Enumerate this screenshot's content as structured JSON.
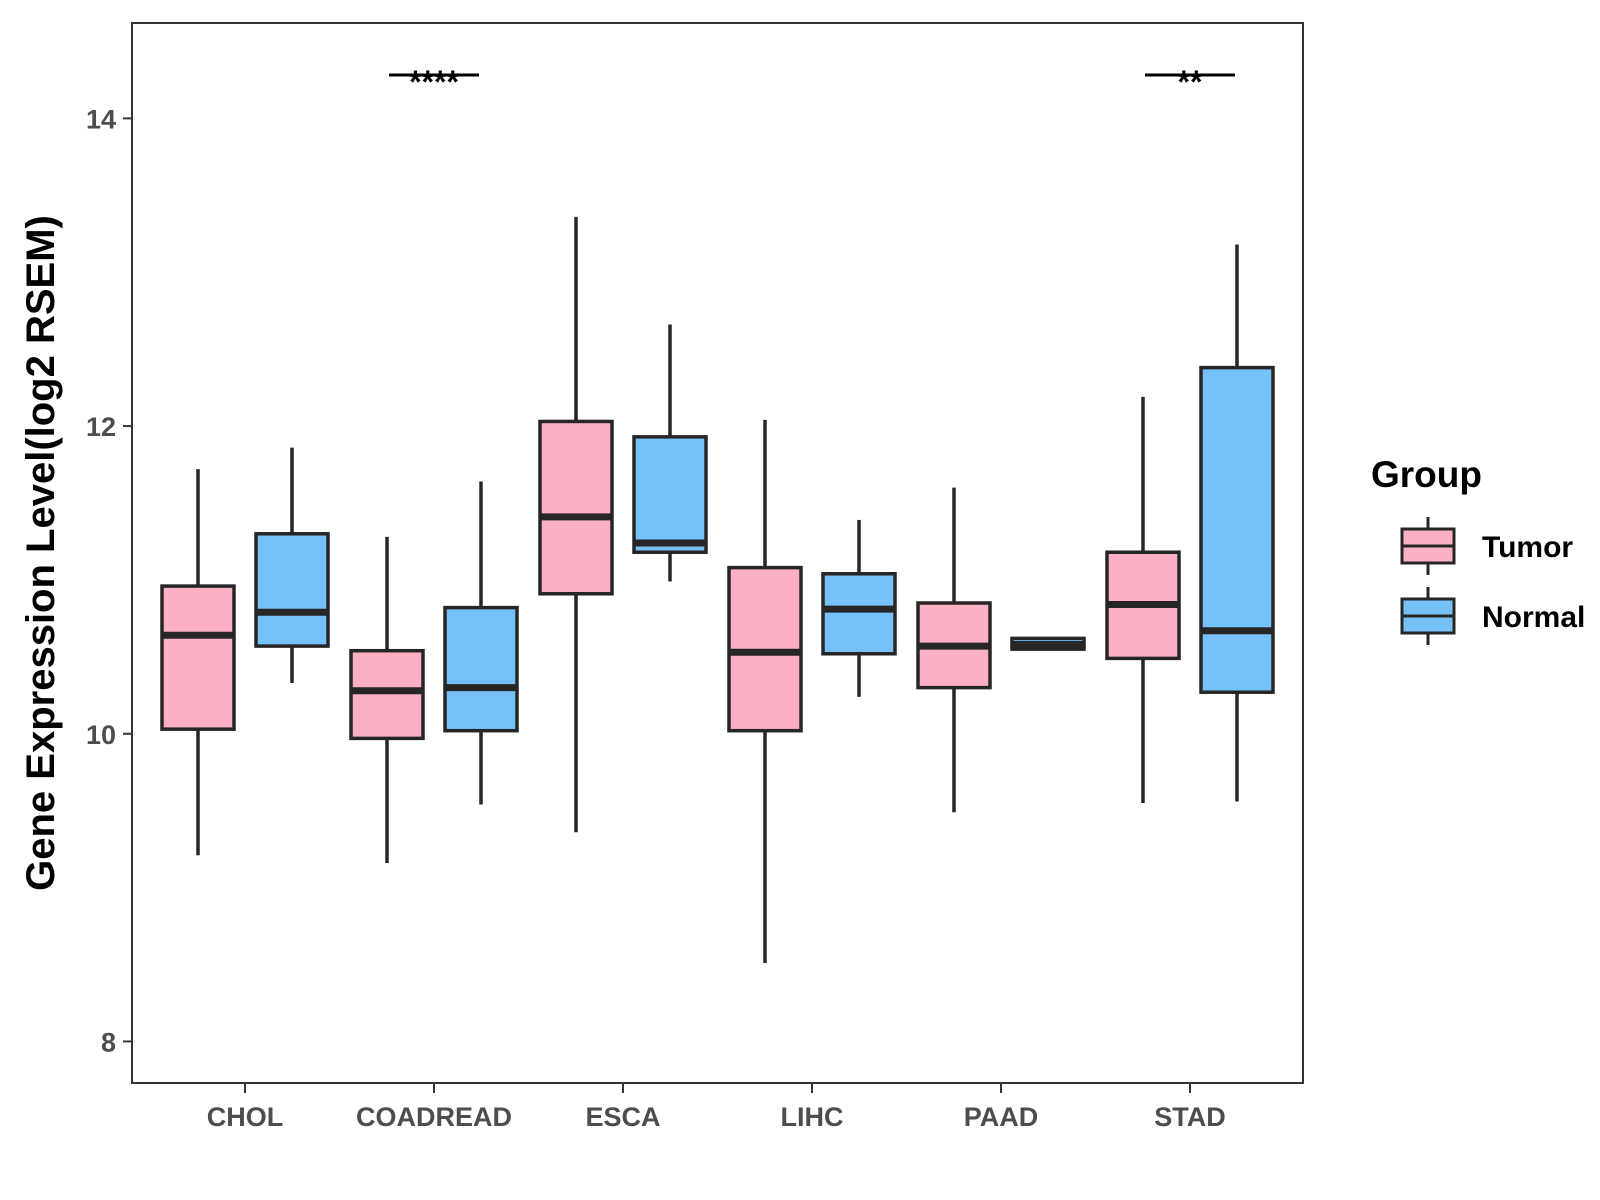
{
  "chart_data": {
    "type": "boxplot",
    "title": "",
    "xlabel": "",
    "ylabel": "Gene Expression Level(log2 RSEM)",
    "ylim": [
      7.73,
      14.62
    ],
    "yticks": [
      8,
      10,
      12,
      14
    ],
    "categories": [
      "CHOL",
      "COADREAD",
      "ESCA",
      "LIHC",
      "PAAD",
      "STAD"
    ],
    "legend": {
      "title": "Group",
      "position": "right",
      "entries": [
        {
          "name": "Tumor",
          "color": "#FBB1C3"
        },
        {
          "name": "Normal",
          "color": "#75C1F8"
        }
      ]
    },
    "series": [
      {
        "name": "Tumor",
        "color": "#FBB1C3",
        "boxes": [
          {
            "category": "CHOL",
            "min": 9.21,
            "q1": 10.03,
            "median": 10.64,
            "q3": 10.96,
            "max": 11.72
          },
          {
            "category": "COADREAD",
            "min": 9.16,
            "q1": 9.97,
            "median": 10.28,
            "q3": 10.54,
            "max": 11.28
          },
          {
            "category": "ESCA",
            "min": 9.36,
            "q1": 10.91,
            "median": 11.41,
            "q3": 12.03,
            "max": 13.36
          },
          {
            "category": "LIHC",
            "min": 8.51,
            "q1": 10.02,
            "median": 10.53,
            "q3": 11.08,
            "max": 12.04
          },
          {
            "category": "PAAD",
            "min": 9.49,
            "q1": 10.3,
            "median": 10.57,
            "q3": 10.85,
            "max": 11.6
          },
          {
            "category": "STAD",
            "min": 9.55,
            "q1": 10.49,
            "median": 10.84,
            "q3": 11.18,
            "max": 12.19
          }
        ]
      },
      {
        "name": "Normal",
        "color": "#75C1F8",
        "boxes": [
          {
            "category": "CHOL",
            "min": 10.33,
            "q1": 10.57,
            "median": 10.79,
            "q3": 11.3,
            "max": 11.86
          },
          {
            "category": "COADREAD",
            "min": 9.54,
            "q1": 10.02,
            "median": 10.3,
            "q3": 10.82,
            "max": 11.64
          },
          {
            "category": "ESCA",
            "min": 10.99,
            "q1": 11.18,
            "median": 11.24,
            "q3": 11.93,
            "max": 12.66
          },
          {
            "category": "LIHC",
            "min": 10.24,
            "q1": 10.52,
            "median": 10.81,
            "q3": 11.04,
            "max": 11.39
          },
          {
            "category": "PAAD",
            "min": 10.55,
            "q1": 10.55,
            "median": 10.58,
            "q3": 10.62,
            "max": 10.62
          },
          {
            "category": "STAD",
            "min": 9.56,
            "q1": 10.27,
            "median": 10.67,
            "q3": 12.38,
            "max": 13.18
          }
        ]
      }
    ],
    "annotations": [
      {
        "category": "COADREAD",
        "label": "****"
      },
      {
        "category": "STAD",
        "label": "**"
      }
    ]
  },
  "colors": {
    "tumor": "#FBB1C3",
    "normal": "#75C1F8",
    "outline": "#262626",
    "axis": "#333333",
    "tick_label": "#4d4d4d"
  }
}
